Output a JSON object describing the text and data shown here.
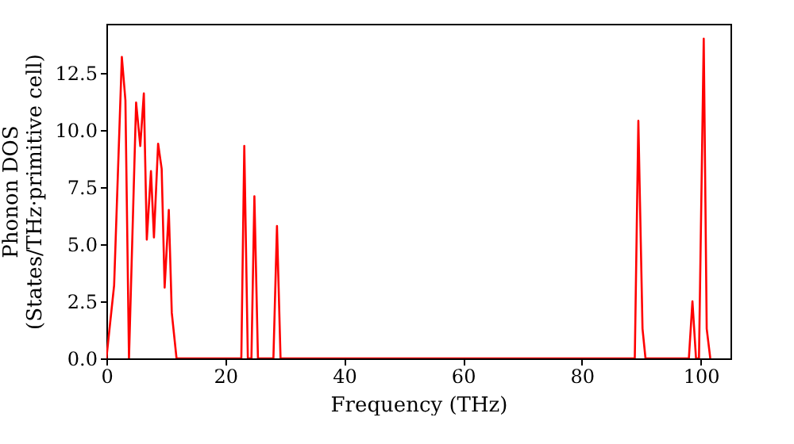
{
  "chart_data": {
    "type": "line",
    "xlabel": "Frequency (THz)",
    "ylabel": "Phonon DOS\n(States/THz·primitive cell)",
    "xlim": [
      0,
      105
    ],
    "xticks": [
      0,
      20,
      40,
      60,
      80,
      100
    ],
    "ylim": [
      0,
      14.65
    ],
    "yticks": [
      {
        "value": 0,
        "label": "0.0"
      },
      {
        "value": 2.5,
        "label": "2.5"
      },
      {
        "value": 5,
        "label": "5.0"
      },
      {
        "value": 7.5,
        "label": "7.5"
      },
      {
        "value": 10,
        "label": "10.0"
      },
      {
        "value": 12.5,
        "label": "12.5"
      }
    ],
    "marker": "none",
    "line_style": "solid",
    "series": [
      {
        "color": "#ff0000",
        "x": [
          0,
          1.3,
          2.6,
          3.2,
          3.8,
          5.0,
          5.7,
          6.3,
          6.8,
          7.5,
          8.0,
          8.7,
          9.3,
          9.8,
          10.5,
          11.0,
          11.8,
          22.7,
          23.2,
          23.8,
          24.4,
          24.9,
          25.5,
          28.1,
          28.7,
          29.3,
          88.9,
          89.5,
          90.2,
          90.7,
          98.0,
          98.6,
          99.2,
          99.7,
          100.5,
          101.0,
          101.6
        ],
        "values": [
          0,
          3.2,
          13.2,
          11.3,
          0,
          11.2,
          9.3,
          11.6,
          5.2,
          8.2,
          5.3,
          9.4,
          8.3,
          3.1,
          6.5,
          2.0,
          0,
          0,
          9.3,
          0,
          0,
          7.1,
          0,
          0,
          5.8,
          0,
          0,
          10.4,
          1.3,
          0,
          0,
          2.5,
          0,
          0,
          14.0,
          1.3,
          0
        ]
      }
    ]
  }
}
